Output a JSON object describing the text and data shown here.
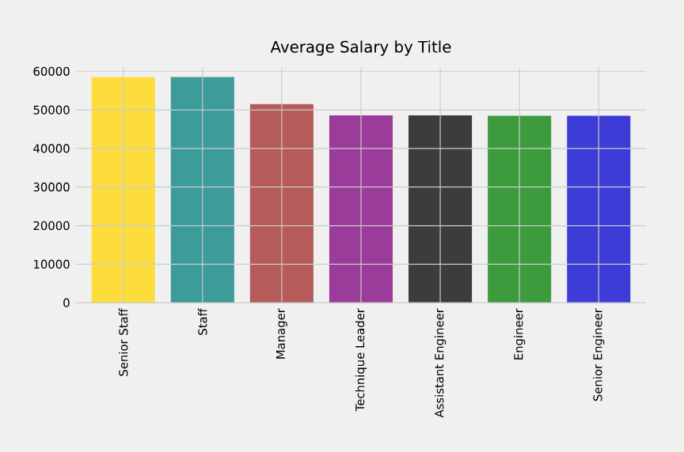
{
  "chart_data": {
    "type": "bar",
    "title": "Average Salary by Title",
    "categories": [
      "Senior Staff",
      "Staff",
      "Manager",
      "Technique Leader",
      "Assistant Engineer",
      "Engineer",
      "Senior Engineer"
    ],
    "values": [
      58500,
      58500,
      51500,
      48600,
      48600,
      48500,
      48500
    ],
    "colors": [
      "#fcdd3b",
      "#3d9b9a",
      "#b55b5a",
      "#9b3b9a",
      "#3c3c3c",
      "#3d9b3d",
      "#3d3cd7"
    ],
    "ylim": [
      0,
      61000
    ],
    "yticks": [
      0,
      10000,
      20000,
      30000,
      40000,
      50000,
      60000
    ],
    "grid": true
  }
}
